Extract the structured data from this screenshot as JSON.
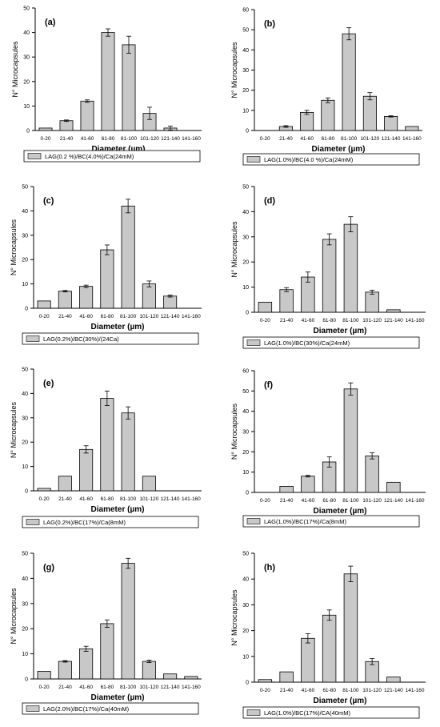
{
  "figure": {
    "shared": {
      "categories": [
        "0-20",
        "21-40",
        "41-60",
        "61-80",
        "81-100",
        "101-120",
        "121-140",
        "141-160"
      ],
      "xlabel": "Diameter (µm)",
      "ylabel": "N° Microcapsules",
      "bar_color": "#c8c8c8",
      "axis_color": "#000000"
    }
  },
  "chart_data": [
    {
      "type": "bar",
      "panel_label": "(a)",
      "categories": [
        "0-20",
        "21-40",
        "41-60",
        "61-80",
        "81-100",
        "101-120",
        "121-140",
        "141-160"
      ],
      "values": [
        1,
        4,
        12,
        40,
        35,
        7,
        1,
        0
      ],
      "errors": [
        0,
        0.3,
        0.5,
        1.5,
        3.5,
        2.5,
        0.8,
        0
      ],
      "ylim": [
        0,
        50
      ],
      "yticks": [
        0,
        10,
        20,
        30,
        40,
        50
      ],
      "xlabel": "Diameter (µm)",
      "ylabel": "N° Microcapsules",
      "legend": "LAG(0.2 %)/BC(4.0%)/Ca(24mM)"
    },
    {
      "type": "bar",
      "panel_label": "(b)",
      "categories": [
        "0-20",
        "21-40",
        "41-60",
        "61-80",
        "81-100",
        "101-120",
        "121-140",
        "141-160"
      ],
      "values": [
        0,
        2,
        9,
        15,
        48,
        17,
        7,
        2
      ],
      "errors": [
        0,
        0.4,
        1,
        1.2,
        3,
        1.8,
        0.3,
        0
      ],
      "ylim": [
        0,
        60
      ],
      "yticks": [
        0,
        10,
        20,
        30,
        40,
        50,
        60
      ],
      "xlabel": "Diameter (µm)",
      "ylabel": "N° Microcapsules",
      "legend": "LAG(1.0%)/BC(4.0 %)/Ca(24mM)"
    },
    {
      "type": "bar",
      "panel_label": "(c)",
      "categories": [
        "0-20",
        "21-40",
        "41-60",
        "61-80",
        "81-100",
        "101-120",
        "121-140",
        "141-160"
      ],
      "values": [
        3,
        7,
        9,
        24,
        42,
        10,
        5,
        0
      ],
      "errors": [
        0,
        0.3,
        0.5,
        2,
        2.8,
        1.2,
        0.4,
        0
      ],
      "ylim": [
        0,
        50
      ],
      "yticks": [
        0,
        10,
        20,
        30,
        40,
        50
      ],
      "xlabel": "Diameter (µm)",
      "ylabel": "N° Microcapsules",
      "legend": "LAG(0.2%)/BC(30%)/(24Ca)"
    },
    {
      "type": "bar",
      "panel_label": "(d)",
      "categories": [
        "0-20",
        "21-40",
        "41-60",
        "61-80",
        "81-100",
        "101-120",
        "121-140",
        "141-160"
      ],
      "values": [
        4,
        9,
        14,
        29,
        35,
        8,
        1,
        0
      ],
      "errors": [
        0,
        0.8,
        2,
        2.2,
        3,
        0.8,
        0,
        0
      ],
      "ylim": [
        0,
        50
      ],
      "yticks": [
        0,
        10,
        20,
        30,
        40,
        50
      ],
      "xlabel": "Diameter (µm)",
      "ylabel": "N° Microcapsules",
      "legend": "LAG(1.0%)/BC(30%)/Ca(24mM)"
    },
    {
      "type": "bar",
      "panel_label": "(e)",
      "categories": [
        "0-20",
        "21-40",
        "41-60",
        "61-80",
        "81-100",
        "101-120",
        "121-140",
        "141-160"
      ],
      "values": [
        1,
        6,
        17,
        38,
        32,
        6,
        0,
        0
      ],
      "errors": [
        0,
        0,
        1.5,
        3,
        2.5,
        0,
        0,
        0
      ],
      "ylim": [
        0,
        50
      ],
      "yticks": [
        0,
        10,
        20,
        30,
        40,
        50
      ],
      "xlabel": "Diameter (µm)",
      "ylabel": "N° Microcapsules",
      "legend": "LAG(0.2%)/BC(17%)/Ca(8mM)"
    },
    {
      "type": "bar",
      "panel_label": "(f)",
      "categories": [
        "0-20",
        "21-40",
        "41-60",
        "61-80",
        "81-100",
        "101-120",
        "121-140",
        "141-160"
      ],
      "values": [
        0,
        3,
        8,
        15,
        51,
        18,
        5,
        0
      ],
      "errors": [
        0,
        0,
        0.4,
        2.5,
        3,
        1.5,
        0,
        0
      ],
      "ylim": [
        0,
        60
      ],
      "yticks": [
        0,
        10,
        20,
        30,
        40,
        50,
        60
      ],
      "xlabel": "Diameter (µm)",
      "ylabel": "N° Microcapsules",
      "legend": "LAG(1.0%)/BC(17%)/Ca(8mM)"
    },
    {
      "type": "bar",
      "panel_label": "(g)",
      "categories": [
        "0-20",
        "21-40",
        "41-60",
        "61-80",
        "81-100",
        "101-120",
        "121-140",
        "141-160"
      ],
      "values": [
        3,
        7,
        12,
        22,
        46,
        7,
        2,
        1
      ],
      "errors": [
        0,
        0.3,
        1,
        1.5,
        2,
        0.5,
        0,
        0
      ],
      "ylim": [
        0,
        50
      ],
      "yticks": [
        0,
        10,
        20,
        30,
        40,
        50
      ],
      "xlabel": "Diameter (µm)",
      "ylabel": "N° Microcapsules",
      "legend": "LAG(2.0%)/BC(17%)/Ca(40mM)"
    },
    {
      "type": "bar",
      "panel_label": "(h)",
      "categories": [
        "0-20",
        "21-40",
        "41-60",
        "61-80",
        "81-100",
        "101-120",
        "121-140",
        "141-160"
      ],
      "values": [
        1,
        4,
        17,
        26,
        42,
        8,
        2,
        0
      ],
      "errors": [
        0,
        0,
        1.8,
        2,
        3,
        1.2,
        0,
        0
      ],
      "ylim": [
        0,
        50
      ],
      "yticks": [
        0,
        10,
        20,
        30,
        40,
        50
      ],
      "xlabel": "Diameter (µm)",
      "ylabel": "N° Microcapsules",
      "legend": "LAG(1.0%)/BC(17%)/CA(40mM)"
    }
  ]
}
